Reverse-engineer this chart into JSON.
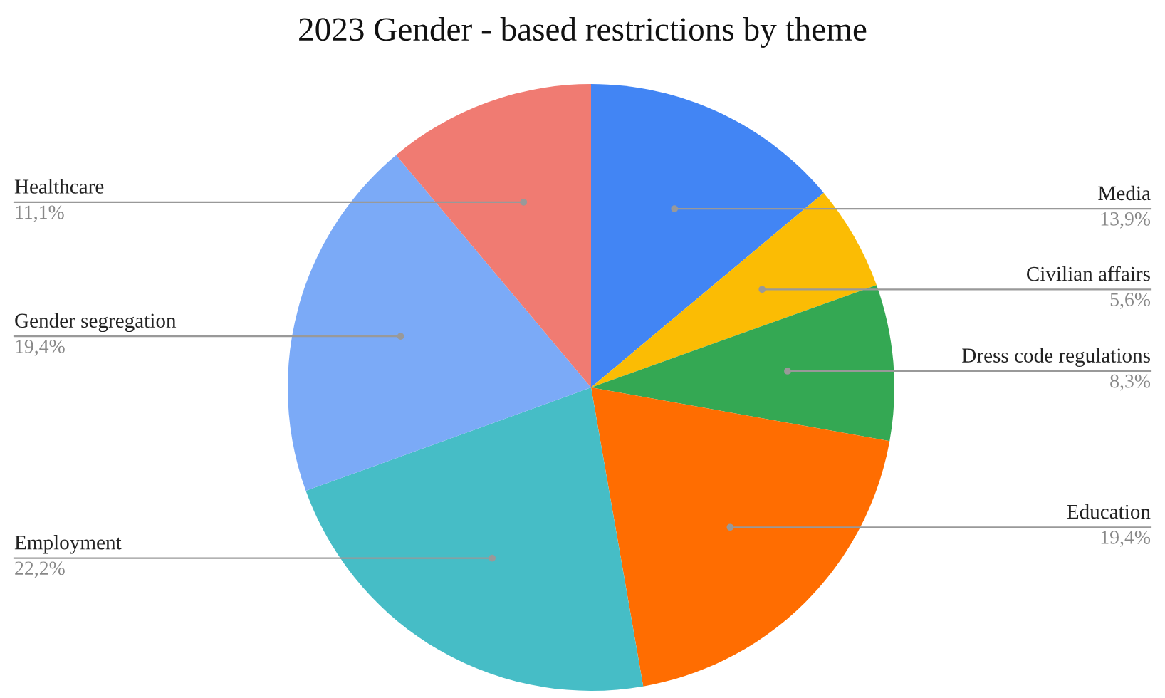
{
  "chart_data": {
    "type": "pie",
    "title": "2023 Gender - based restrictions by theme",
    "categories": [
      "Media",
      "Civilian affairs",
      "Dress code regulations",
      "Education",
      "Employment",
      "Gender segregation",
      "Healthcare"
    ],
    "values": [
      13.9,
      5.6,
      8.3,
      19.4,
      22.2,
      19.4,
      11.1
    ],
    "value_labels": [
      "13,9%",
      "5,6%",
      "8,3%",
      "19,4%",
      "22,2%",
      "19,4%",
      "11,1%"
    ],
    "colors": [
      "#4285f4",
      "#fbbc04",
      "#34a853",
      "#ff6d01",
      "#46bdc6",
      "#7baaf7",
      "#f07b72"
    ],
    "legend": false
  }
}
